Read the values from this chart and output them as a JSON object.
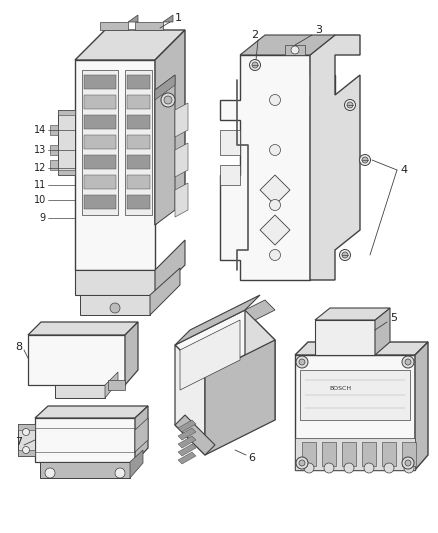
{
  "background_color": "#ffffff",
  "fig_width": 4.38,
  "fig_height": 5.33,
  "dpi": 100,
  "line_color": "#404040",
  "shade_dark": "#999999",
  "shade_mid": "#bbbbbb",
  "shade_light": "#dddddd",
  "shade_lighter": "#eeeeee",
  "shade_white": "#f8f8f8",
  "label_fs": 7.5,
  "label_color": "#222222"
}
